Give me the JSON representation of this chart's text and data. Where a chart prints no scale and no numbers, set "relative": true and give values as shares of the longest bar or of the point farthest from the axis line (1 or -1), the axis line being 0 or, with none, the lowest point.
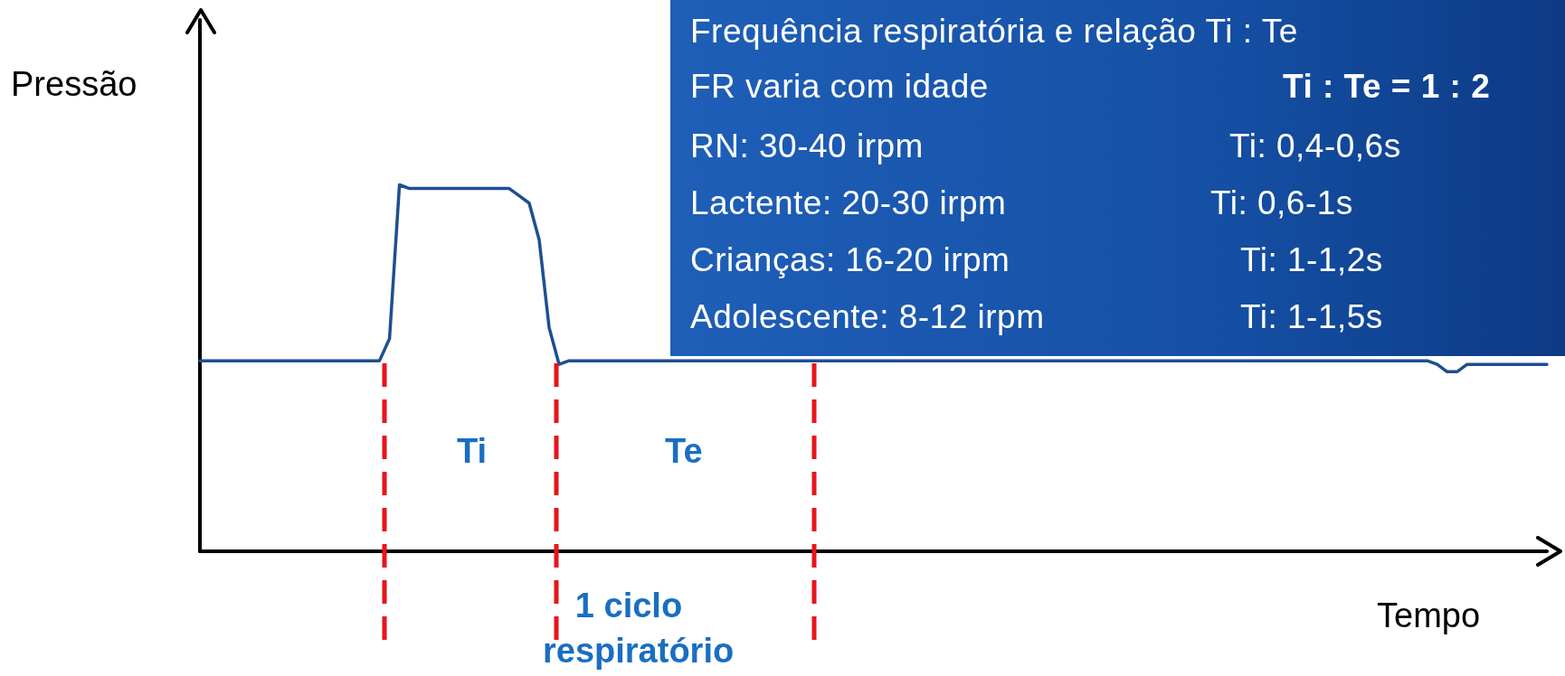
{
  "chart_data": {
    "type": "line",
    "relative": true,
    "xlabel": "Tempo",
    "ylabel": "Pressão",
    "grid": false,
    "marker": "none",
    "categories": [
      null,
      null,
      null,
      null,
      null,
      null,
      null,
      null,
      null,
      null,
      null,
      null,
      null,
      null,
      null,
      null,
      null,
      null,
      null,
      null,
      null,
      null,
      null,
      null,
      null,
      null,
      null,
      null,
      null,
      null,
      null,
      null,
      null,
      null,
      null,
      null,
      null,
      null,
      null,
      null,
      null,
      null,
      null,
      null,
      null,
      null,
      null,
      null,
      null,
      null,
      null,
      null,
      null,
      null,
      null,
      null,
      null,
      null,
      null,
      null,
      null,
      null,
      null,
      null,
      null,
      null,
      null,
      null,
      null,
      null,
      null,
      null,
      null,
      null,
      null,
      null,
      null,
      null,
      null,
      null,
      null,
      null,
      null,
      null,
      null,
      null,
      null,
      null,
      null,
      null,
      null,
      null,
      null,
      null,
      null,
      null,
      null,
      null,
      null,
      null,
      null,
      null,
      null,
      null,
      null,
      null,
      null,
      null,
      null,
      null,
      null,
      null,
      null,
      null,
      null,
      null,
      null,
      null,
      null,
      null,
      null,
      null,
      null,
      null,
      null,
      null,
      null,
      null,
      null,
      null,
      null,
      null,
      null,
      null,
      null,
      null
    ],
    "series": [
      {
        "color": "#1d4f91",
        "values": [
          0.52,
          0.52,
          0.52,
          0.52,
          0.52,
          0.52,
          0.52,
          0.52,
          0.52,
          0.52,
          0.52,
          0.52,
          0.52,
          0.52,
          0.52,
          0.52,
          0.52,
          0.52,
          0.52,
          0.58,
          1.0,
          0.99,
          0.99,
          0.99,
          0.99,
          0.99,
          0.99,
          0.99,
          0.99,
          0.99,
          0.99,
          0.99,
          0.97,
          0.95,
          0.85,
          0.61,
          0.51,
          0.52,
          0.52,
          0.52,
          0.52,
          0.52,
          0.52,
          0.52,
          0.52,
          0.52,
          0.52,
          0.52,
          0.52,
          0.52,
          0.52,
          0.52,
          0.52,
          0.52,
          0.52,
          0.52,
          0.52,
          0.52,
          0.52,
          0.52,
          0.52,
          0.52,
          0.52,
          0.52,
          0.52,
          0.52,
          0.52,
          0.52,
          0.52,
          0.52,
          0.52,
          0.52,
          0.52,
          0.52,
          0.52,
          0.52,
          0.52,
          0.52,
          0.52,
          0.52,
          0.52,
          0.52,
          0.52,
          0.52,
          0.52,
          0.52,
          0.52,
          0.52,
          0.52,
          0.52,
          0.52,
          0.52,
          0.52,
          0.52,
          0.52,
          0.52,
          0.52,
          0.52,
          0.52,
          0.52,
          0.52,
          0.52,
          0.52,
          0.52,
          0.52,
          0.52,
          0.52,
          0.52,
          0.52,
          0.52,
          0.52,
          0.52,
          0.52,
          0.52,
          0.52,
          0.52,
          0.52,
          0.52,
          0.52,
          0.52,
          0.52,
          0.52,
          0.52,
          0.52,
          0.51,
          0.49,
          0.49,
          0.51,
          0.51,
          0.51,
          0.51,
          0.51,
          0.51,
          0.51,
          0.51,
          0.51
        ]
      }
    ],
    "annotations": [
      "Ti",
      "Te",
      "1 ciclo respiratório",
      "Frequência respiratória e relação Ti : Te",
      "FR varia com idade",
      "Ti : Te = 1 : 2",
      "RN: 30-40 irpm",
      "Ti: 0,4-0,6s",
      "Lactente: 20-30 irpm",
      "Ti: 0,6-1s",
      "Crianças: 16-20 irpm",
      "Ti: 1-1,2s",
      "Adolescente: 8-12 irpm",
      "Ti: 1-1,5s"
    ]
  }
}
